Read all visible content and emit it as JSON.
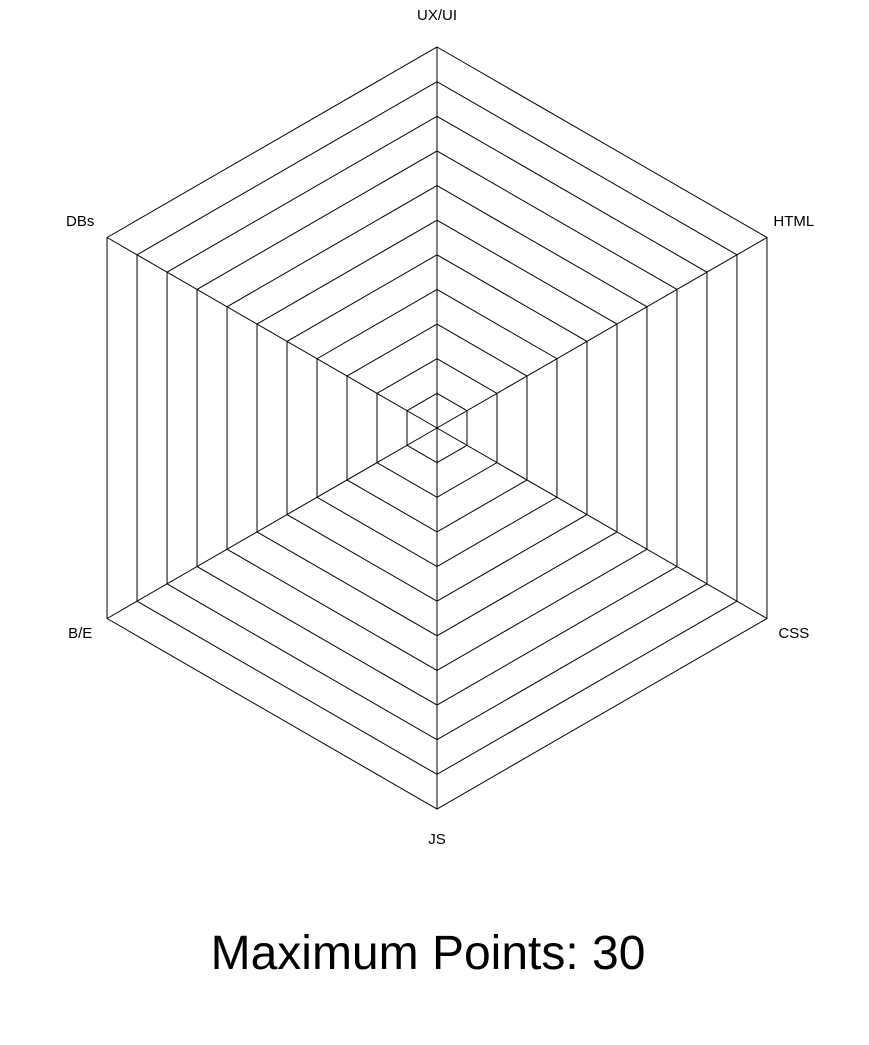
{
  "chart_data": {
    "type": "radar",
    "axes": [
      "UX/UI",
      "HTML",
      "CSS",
      "JS",
      "B/E",
      "DBs"
    ],
    "rings": 11,
    "grid": true,
    "series": [],
    "line_color": "#000000",
    "background": "#ffffff"
  },
  "footer": {
    "max_points_text": "Maximum Points: 30"
  }
}
